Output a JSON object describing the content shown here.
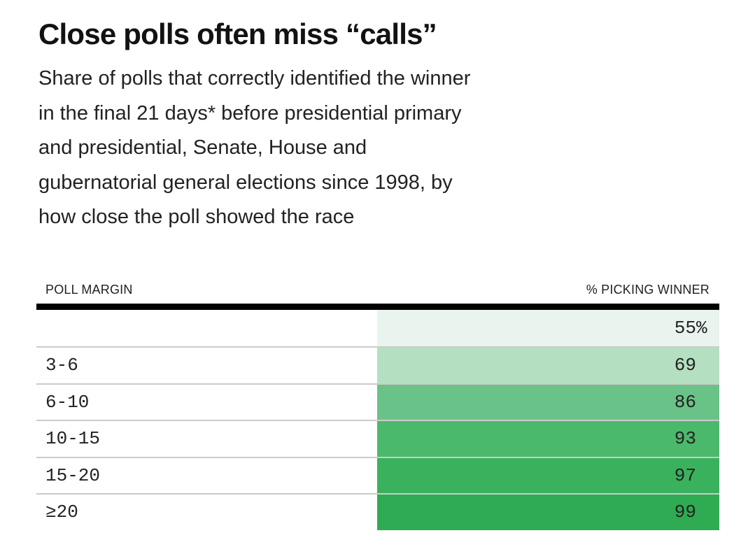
{
  "header": {
    "title": "Close polls often miss “calls”",
    "subtitle": "Share of polls that correctly identified the winner\nin the final 21 days* before presidential primary\nand presidential, Senate, House and\ngubernatorial general elections since 1998, by\nhow close the poll showed the race"
  },
  "table": {
    "columns": [
      "POLL MARGIN",
      "% PICKING WINNER"
    ],
    "rows": [
      {
        "margin": "",
        "value": "55",
        "suffix": "%",
        "color": "#e9f4ee"
      },
      {
        "margin": "3-6",
        "value": "69",
        "suffix": "",
        "color": "#b4dfc1"
      },
      {
        "margin": "6-10",
        "value": "86",
        "suffix": "",
        "color": "#69c287"
      },
      {
        "margin": "10-15",
        "value": "93",
        "suffix": "",
        "color": "#4bb96b"
      },
      {
        "margin": "15-20",
        "value": "97",
        "suffix": "",
        "color": "#3ab15d"
      },
      {
        "margin": "≥20",
        "value": "99",
        "suffix": "",
        "color": "#2fab53"
      }
    ],
    "rule_color": "#010101",
    "separator_color": "#cbcbcb"
  },
  "chart_data": {
    "type": "table",
    "title": "Close polls often miss “calls”",
    "subtitle": "Share of polls that correctly identified the winner in the final 21 days* before presidential primary and presidential, Senate, House and gubernatorial general elections since 1998, by how close the poll showed the race",
    "columns": [
      "POLL MARGIN",
      "% PICKING WINNER"
    ],
    "poll_margin": [
      "",
      "3-6",
      "6-10",
      "10-15",
      "15-20",
      "≥20"
    ],
    "pct_picking_winner": [
      55,
      69,
      86,
      93,
      97,
      99
    ],
    "cell_colors": [
      "#e9f4ee",
      "#b4dfc1",
      "#69c287",
      "#4bb96b",
      "#3ab15d",
      "#2fab53"
    ],
    "value_label_format": "first value shown with % sign, others digits only",
    "legend": "none",
    "grid": "horizontal light-gray row separators, heavy black rule under column headers"
  }
}
